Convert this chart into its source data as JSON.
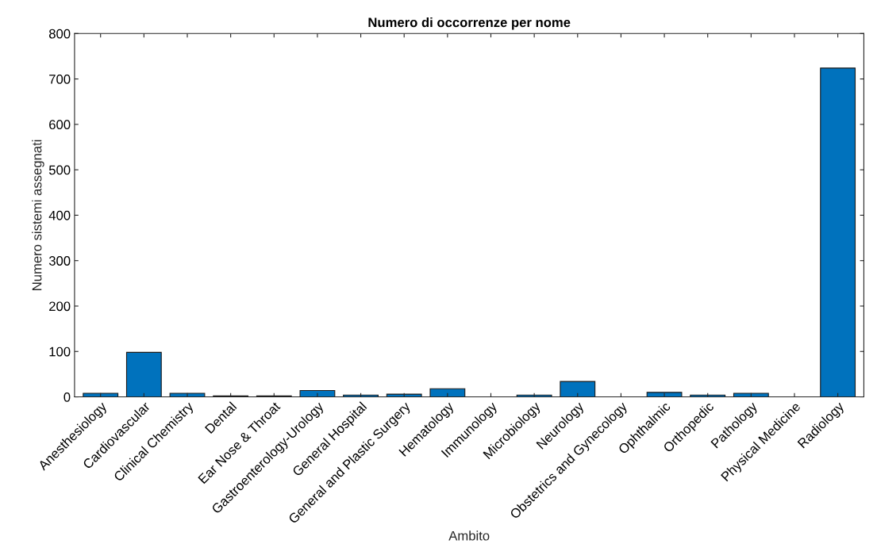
{
  "chart_data": {
    "type": "bar",
    "title": "Numero di occorrenze per nome",
    "xlabel": "Ambito",
    "ylabel": "Numero sistemi assegnati",
    "categories": [
      "Anesthesiology",
      "Cardiovascular",
      "Clinical Chemistry",
      "Dental",
      "Ear Nose & Throat",
      "Gastroenterology-Urology",
      "General Hospital",
      "General and Plastic Surgery",
      "Hematology",
      "Immunology",
      "Microbiology",
      "Neurology",
      "Obstetrics and Gynecology",
      "Ophthalmic",
      "Orthopedic",
      "Pathology",
      "Physical Medicine",
      "Radiology"
    ],
    "values": [
      8,
      98,
      8,
      2,
      2,
      14,
      4,
      6,
      18,
      0,
      4,
      34,
      0,
      10,
      4,
      8,
      0,
      724
    ],
    "color": "#0072bd",
    "ylim": [
      0,
      800
    ],
    "yticks": [
      0,
      100,
      200,
      300,
      400,
      500,
      600,
      700,
      800
    ],
    "grid": false
  }
}
